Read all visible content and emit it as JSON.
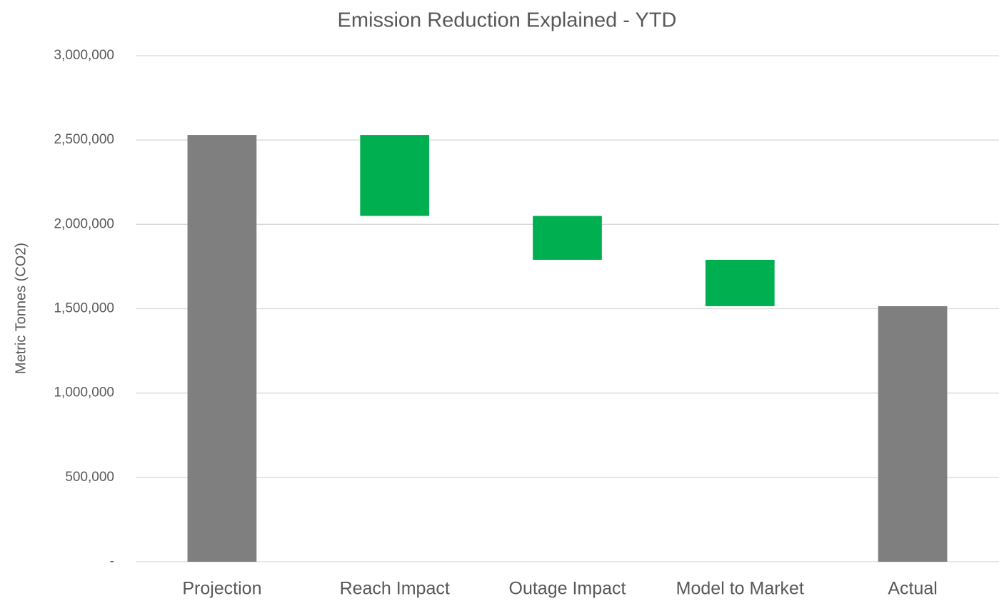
{
  "chart_data": {
    "type": "waterfall",
    "title": "Emission Reduction Explained - YTD",
    "y_label": "Metric Tonnes (CO2)",
    "categories": [
      "Projection",
      "Reach Impact",
      "Outage Impact",
      "Model to Market",
      "Actual"
    ],
    "values": [
      2530000,
      -480000,
      -260000,
      -275000,
      1515000
    ],
    "is_total": [
      true,
      false,
      false,
      false,
      true
    ],
    "total_color": "#7f7f7f",
    "decrease_color": "#00b050",
    "ylim": [
      0,
      3000000
    ],
    "yticks": [
      {
        "value": 0,
        "label": "-"
      },
      {
        "value": 500000,
        "label": "500,000"
      },
      {
        "value": 1000000,
        "label": "1,000,000"
      },
      {
        "value": 1500000,
        "label": "1,500,000"
      },
      {
        "value": 2000000,
        "label": "2,000,000"
      },
      {
        "value": 2500000,
        "label": "2,500,000"
      },
      {
        "value": 3000000,
        "label": "3,000,000"
      }
    ],
    "grid": true
  }
}
